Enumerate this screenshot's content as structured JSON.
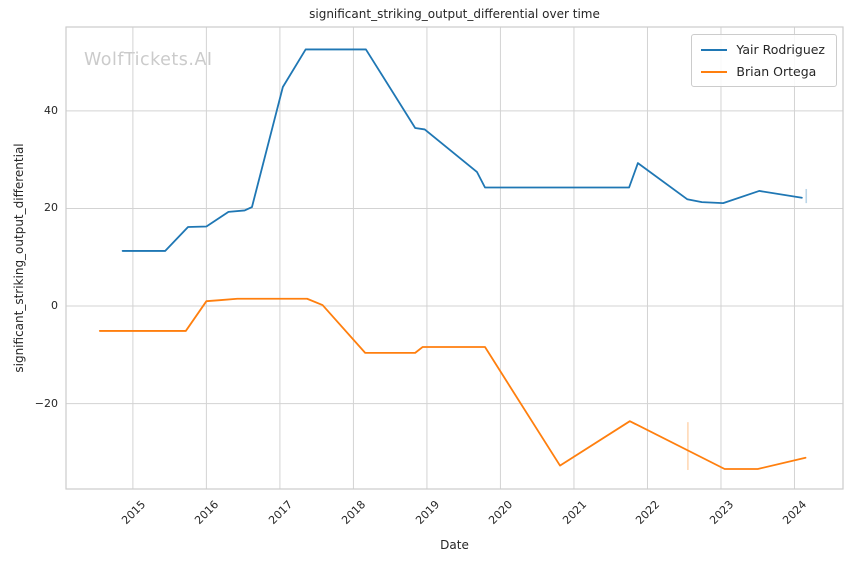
{
  "chart_data": {
    "type": "line",
    "title": "significant_striking_output_differential over time",
    "xlabel": "Date",
    "ylabel": "significant_striking_output_differential",
    "watermark": "WolfTickets.AI",
    "grid": true,
    "legend_position": "top-right",
    "xlim": [
      2014.09,
      2024.66
    ],
    "ylim": [
      -37.5,
      57.2
    ],
    "xticks": [
      2015,
      2016,
      2017,
      2018,
      2019,
      2020,
      2021,
      2022,
      2023,
      2024
    ],
    "yticks": [
      -20,
      0,
      20,
      40
    ],
    "colors": {
      "grid": "#d3d3d3",
      "spine": "#cccccc",
      "text": "#262626",
      "watermark": "#cbcbcb"
    },
    "series": [
      {
        "name": "Yair Rodriguez",
        "color": "#1f77b4",
        "points": [
          [
            2014.86,
            11.3
          ],
          [
            2015.44,
            11.3
          ],
          [
            2015.75,
            16.2
          ],
          [
            2016.0,
            16.3
          ],
          [
            2016.3,
            19.3
          ],
          [
            2016.52,
            19.6
          ],
          [
            2016.62,
            20.3
          ],
          [
            2017.04,
            44.9
          ],
          [
            2017.35,
            52.6
          ],
          [
            2018.17,
            52.6
          ],
          [
            2018.84,
            36.5
          ],
          [
            2018.97,
            36.2
          ],
          [
            2019.68,
            27.5
          ],
          [
            2019.79,
            24.3
          ],
          [
            2021.75,
            24.3
          ],
          [
            2021.87,
            29.3
          ],
          [
            2022.54,
            21.9
          ],
          [
            2022.74,
            21.3
          ],
          [
            2023.03,
            21.1
          ],
          [
            2023.52,
            23.6
          ],
          [
            2024.1,
            22.2
          ]
        ]
      },
      {
        "name": "Brian Ortega",
        "color": "#ff7f0e",
        "points": [
          [
            2014.55,
            -5.1
          ],
          [
            2015.72,
            -5.1
          ],
          [
            2016.0,
            1.0
          ],
          [
            2016.18,
            1.2
          ],
          [
            2016.42,
            1.5
          ],
          [
            2017.37,
            1.5
          ],
          [
            2017.58,
            0.2
          ],
          [
            2018.16,
            -9.6
          ],
          [
            2018.84,
            -9.6
          ],
          [
            2018.94,
            -8.4
          ],
          [
            2019.79,
            -8.4
          ],
          [
            2020.81,
            -32.7
          ],
          [
            2021.76,
            -23.6
          ],
          [
            2023.05,
            -33.4
          ],
          [
            2023.5,
            -33.4
          ],
          [
            2024.15,
            -31.1
          ]
        ]
      }
    ],
    "markers": [
      {
        "series": "Brian Ortega",
        "color": "#ff7f0e",
        "x": 2022.55,
        "y1": -23.8,
        "y2": -33.6
      },
      {
        "series": "Yair Rodriguez",
        "color": "#1f77b4",
        "x": 2024.16,
        "y1": 24.0,
        "y2": 21.1
      }
    ]
  }
}
